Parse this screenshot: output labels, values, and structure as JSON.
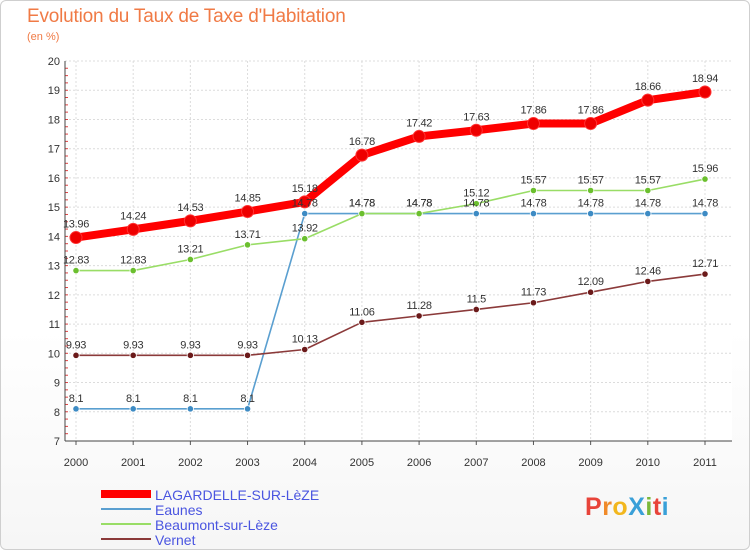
{
  "header": {
    "title": "Evolution du Taux de Taxe d'Habitation",
    "subtitle": "(en %)"
  },
  "logo": {
    "text": "ProXiti",
    "letters": [
      {
        "ch": "P",
        "color": "#e8443a"
      },
      {
        "ch": "r",
        "color": "#f08a2a"
      },
      {
        "ch": "o",
        "color": "#f2b71e"
      },
      {
        "ch": "X",
        "color": "#3aa0d8"
      },
      {
        "ch": "i",
        "color": "#7ab83a"
      },
      {
        "ch": "t",
        "color": "#e8443a"
      },
      {
        "ch": "i",
        "color": "#3aa0d8"
      }
    ]
  },
  "chart_data": {
    "type": "line",
    "title": "Evolution du Taux de Taxe d'Habitation",
    "ylabel": "(en %)",
    "xlabel": "",
    "x": [
      "2000",
      "2001",
      "2002",
      "2003",
      "2004",
      "2005",
      "2006",
      "2007",
      "2008",
      "2009",
      "2010",
      "2011"
    ],
    "ylim": [
      7,
      20
    ],
    "yticks": [
      7,
      8,
      9,
      10,
      11,
      12,
      13,
      14,
      15,
      16,
      17,
      18,
      19,
      20
    ],
    "grid": true,
    "legend_position": "bottom-left",
    "series": [
      {
        "name": "LAGARDELLE-SUR-LèZE",
        "color": "#ff0000",
        "emphasis": true,
        "values": [
          13.96,
          14.24,
          14.53,
          14.85,
          15.18,
          16.78,
          17.42,
          17.63,
          17.86,
          17.86,
          18.66,
          18.94
        ],
        "labels": [
          "13.96",
          "14.24",
          "14.53",
          "14.85",
          "15.18",
          "16.78",
          "17.42",
          "17.63",
          "17.86",
          "17.86",
          "18.66",
          "18.94"
        ]
      },
      {
        "name": "Eaunes",
        "color": "#5a9fd0",
        "marker": "#3d8bc4",
        "values": [
          8.1,
          8.1,
          8.1,
          8.1,
          14.78,
          14.78,
          14.78,
          14.78,
          14.78,
          14.78,
          14.78,
          14.78
        ],
        "labels": [
          "8.1",
          "8.1",
          "8.1",
          "8.1",
          "14.78",
          "14.78",
          "14.78",
          "14.78",
          "14.78",
          "14.78",
          "14.78",
          "14.78"
        ]
      },
      {
        "name": "Beaumont-sur-Lèze",
        "color": "#99dd66",
        "marker": "#6bbf2e",
        "values": [
          12.83,
          12.83,
          13.21,
          13.71,
          13.92,
          14.78,
          14.78,
          15.12,
          15.57,
          15.57,
          15.57,
          15.96
        ],
        "labels": [
          "12.83",
          "12.83",
          "13.21",
          "13.71",
          "13.92",
          "14.78",
          "14.78",
          "15.12",
          "15.57",
          "15.57",
          "15.57",
          "15.96"
        ]
      },
      {
        "name": "Vernet",
        "color": "#8b3a3a",
        "marker": "#6b1a1a",
        "values": [
          9.93,
          9.93,
          9.93,
          9.93,
          10.13,
          11.06,
          11.28,
          11.5,
          11.73,
          12.09,
          12.46,
          12.71
        ],
        "labels": [
          "9.93",
          "9.93",
          "9.93",
          "9.93",
          "10.13",
          "11.06",
          "11.28",
          "11.5",
          "11.73",
          "12.09",
          "12.46",
          "12.71"
        ]
      }
    ]
  }
}
